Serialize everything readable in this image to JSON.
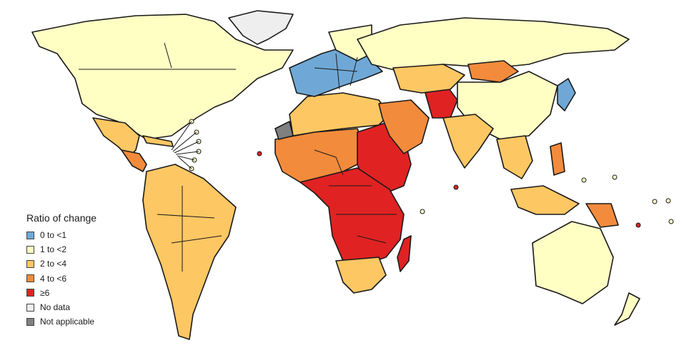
{
  "legend": {
    "title": "Ratio of change",
    "items": [
      {
        "label": "0 to <1",
        "color": "#6fa8d6"
      },
      {
        "label": "1 to <2",
        "color": "#ffffc4"
      },
      {
        "label": "2 to <4",
        "color": "#fdc763"
      },
      {
        "label": "4 to <6",
        "color": "#f38b3c"
      },
      {
        "label": "≥6",
        "color": "#e02222"
      },
      {
        "label": "No data",
        "color": "#eeeeee"
      },
      {
        "label": "Not applicable",
        "color": "#808080"
      }
    ]
  }
}
